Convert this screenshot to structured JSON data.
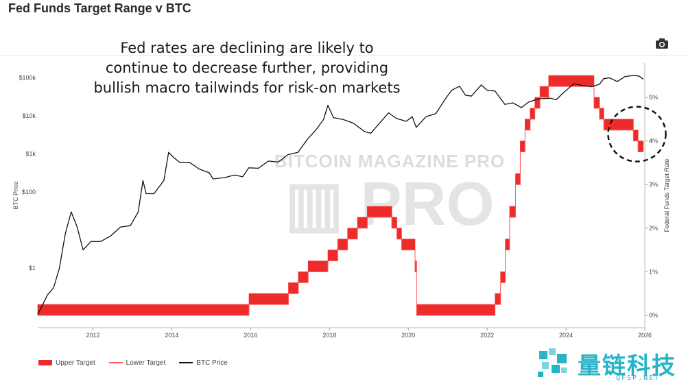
{
  "header": {
    "title": "Fed Funds Target Range v BTC"
  },
  "toolbar": {
    "camera_icon": "camera-icon"
  },
  "annotation": [
    "Fed rates are declining are likely to",
    "continue to decrease further, providing",
    "bullish macro tailwinds for risk-on markets"
  ],
  "watermark": "BITCOIN MAGAZINE PRO",
  "brand": {
    "text": "量链科技",
    "sub": "QFSP.NET",
    "color": "#28b4c8"
  },
  "colors": {
    "upper": "#ee2b2b",
    "lower": "#ff5a5a",
    "btc": "#111111"
  },
  "chart_data": {
    "type": "line",
    "title": "Fed Funds Target Range v BTC",
    "x_ticks": [
      "2012",
      "2014",
      "2016",
      "2018",
      "2020",
      "2022",
      "2024",
      "2026"
    ],
    "xlim": [
      2010.6,
      2026.0
    ],
    "y_left": {
      "label": "BTC Price",
      "scale": "log",
      "ticks": [
        {
          "value": 1,
          "label": "$1"
        },
        {
          "value": 100,
          "label": "$100"
        },
        {
          "value": 1000,
          "label": "$1k"
        },
        {
          "value": 10000,
          "label": "$10k"
        },
        {
          "value": 100000,
          "label": "$100k"
        }
      ]
    },
    "y_right": {
      "label": "Federal Funds Target Rate",
      "ticks": [
        "0%",
        "1%",
        "2%",
        "3%",
        "4%",
        "5%"
      ],
      "ylim": [
        0,
        5.5
      ]
    },
    "legend": [
      "Upper Target",
      "Lower Target",
      "BTC Price"
    ],
    "legend_position": "bottom-left",
    "series": [
      {
        "name": "Upper Target",
        "axis": "right",
        "points": [
          [
            2010.6,
            0.25
          ],
          [
            2015.96,
            0.25
          ],
          [
            2015.96,
            0.5
          ],
          [
            2016.96,
            0.5
          ],
          [
            2016.96,
            0.75
          ],
          [
            2017.21,
            0.75
          ],
          [
            2017.21,
            1.0
          ],
          [
            2017.46,
            1.0
          ],
          [
            2017.46,
            1.25
          ],
          [
            2017.96,
            1.25
          ],
          [
            2017.96,
            1.5
          ],
          [
            2018.21,
            1.5
          ],
          [
            2018.21,
            1.75
          ],
          [
            2018.46,
            1.75
          ],
          [
            2018.46,
            2.0
          ],
          [
            2018.71,
            2.0
          ],
          [
            2018.71,
            2.25
          ],
          [
            2018.96,
            2.25
          ],
          [
            2018.96,
            2.5
          ],
          [
            2019.58,
            2.5
          ],
          [
            2019.58,
            2.25
          ],
          [
            2019.71,
            2.25
          ],
          [
            2019.71,
            2.0
          ],
          [
            2019.83,
            2.0
          ],
          [
            2019.83,
            1.75
          ],
          [
            2020.17,
            1.75
          ],
          [
            2020.17,
            1.25
          ],
          [
            2020.21,
            1.25
          ],
          [
            2020.21,
            0.25
          ],
          [
            2022.2,
            0.25
          ],
          [
            2022.2,
            0.5
          ],
          [
            2022.34,
            0.5
          ],
          [
            2022.34,
            1.0
          ],
          [
            2022.46,
            1.0
          ],
          [
            2022.46,
            1.75
          ],
          [
            2022.57,
            1.75
          ],
          [
            2022.57,
            2.5
          ],
          [
            2022.72,
            2.5
          ],
          [
            2022.72,
            3.25
          ],
          [
            2022.84,
            3.25
          ],
          [
            2022.84,
            4.0
          ],
          [
            2022.96,
            4.0
          ],
          [
            2022.96,
            4.5
          ],
          [
            2023.09,
            4.5
          ],
          [
            2023.09,
            4.75
          ],
          [
            2023.21,
            4.75
          ],
          [
            2023.21,
            5.0
          ],
          [
            2023.34,
            5.0
          ],
          [
            2023.34,
            5.25
          ],
          [
            2023.56,
            5.25
          ],
          [
            2023.56,
            5.5
          ],
          [
            2024.71,
            5.5
          ],
          [
            2024.71,
            5.0
          ],
          [
            2024.85,
            5.0
          ],
          [
            2024.85,
            4.75
          ],
          [
            2024.96,
            4.75
          ],
          [
            2024.96,
            4.5
          ],
          [
            2025.71,
            4.5
          ],
          [
            2025.71,
            4.25
          ],
          [
            2025.83,
            4.25
          ],
          [
            2025.83,
            4.0
          ],
          [
            2025.96,
            4.0
          ]
        ]
      },
      {
        "name": "Lower Target",
        "axis": "right",
        "points": [
          [
            2010.6,
            0.0
          ],
          [
            2015.96,
            0.0
          ],
          [
            2015.96,
            0.25
          ],
          [
            2016.96,
            0.25
          ],
          [
            2016.96,
            0.5
          ],
          [
            2017.21,
            0.5
          ],
          [
            2017.21,
            0.75
          ],
          [
            2017.46,
            0.75
          ],
          [
            2017.46,
            1.0
          ],
          [
            2017.96,
            1.0
          ],
          [
            2017.96,
            1.25
          ],
          [
            2018.21,
            1.25
          ],
          [
            2018.21,
            1.5
          ],
          [
            2018.46,
            1.5
          ],
          [
            2018.46,
            1.75
          ],
          [
            2018.71,
            1.75
          ],
          [
            2018.71,
            2.0
          ],
          [
            2018.96,
            2.0
          ],
          [
            2018.96,
            2.25
          ],
          [
            2019.58,
            2.25
          ],
          [
            2019.58,
            2.0
          ],
          [
            2019.71,
            2.0
          ],
          [
            2019.71,
            1.75
          ],
          [
            2019.83,
            1.75
          ],
          [
            2019.83,
            1.5
          ],
          [
            2020.17,
            1.5
          ],
          [
            2020.17,
            1.0
          ],
          [
            2020.21,
            1.0
          ],
          [
            2020.21,
            0.0
          ],
          [
            2022.2,
            0.0
          ],
          [
            2022.2,
            0.25
          ],
          [
            2022.34,
            0.25
          ],
          [
            2022.34,
            0.75
          ],
          [
            2022.46,
            0.75
          ],
          [
            2022.46,
            1.5
          ],
          [
            2022.57,
            1.5
          ],
          [
            2022.57,
            2.25
          ],
          [
            2022.72,
            2.25
          ],
          [
            2022.72,
            3.0
          ],
          [
            2022.84,
            3.0
          ],
          [
            2022.84,
            3.75
          ],
          [
            2022.96,
            3.75
          ],
          [
            2022.96,
            4.25
          ],
          [
            2023.09,
            4.25
          ],
          [
            2023.09,
            4.5
          ],
          [
            2023.21,
            4.5
          ],
          [
            2023.21,
            4.75
          ],
          [
            2023.34,
            4.75
          ],
          [
            2023.34,
            5.0
          ],
          [
            2023.56,
            5.0
          ],
          [
            2023.56,
            5.25
          ],
          [
            2024.71,
            5.25
          ],
          [
            2024.71,
            4.75
          ],
          [
            2024.85,
            4.75
          ],
          [
            2024.85,
            4.5
          ],
          [
            2024.96,
            4.5
          ],
          [
            2024.96,
            4.25
          ],
          [
            2025.71,
            4.25
          ],
          [
            2025.71,
            4.0
          ],
          [
            2025.83,
            4.0
          ],
          [
            2025.83,
            3.75
          ],
          [
            2025.96,
            3.75
          ]
        ]
      },
      {
        "name": "BTC Price",
        "axis": "left",
        "points": [
          [
            2010.6,
            0.06
          ],
          [
            2010.85,
            0.2
          ],
          [
            2011.0,
            0.3
          ],
          [
            2011.15,
            1.0
          ],
          [
            2011.3,
            8
          ],
          [
            2011.45,
            30
          ],
          [
            2011.6,
            12
          ],
          [
            2011.75,
            3
          ],
          [
            2011.95,
            5
          ],
          [
            2012.2,
            5
          ],
          [
            2012.45,
            7
          ],
          [
            2012.7,
            12
          ],
          [
            2012.95,
            13
          ],
          [
            2013.15,
            30
          ],
          [
            2013.27,
            200
          ],
          [
            2013.35,
            90
          ],
          [
            2013.55,
            90
          ],
          [
            2013.8,
            200
          ],
          [
            2013.92,
            1100
          ],
          [
            2014.05,
            800
          ],
          [
            2014.2,
            600
          ],
          [
            2014.45,
            600
          ],
          [
            2014.7,
            400
          ],
          [
            2014.95,
            320
          ],
          [
            2015.05,
            220
          ],
          [
            2015.35,
            240
          ],
          [
            2015.6,
            280
          ],
          [
            2015.8,
            250
          ],
          [
            2015.95,
            430
          ],
          [
            2016.2,
            420
          ],
          [
            2016.45,
            650
          ],
          [
            2016.7,
            610
          ],
          [
            2016.95,
            960
          ],
          [
            2017.2,
            1100
          ],
          [
            2017.45,
            2500
          ],
          [
            2017.65,
            4200
          ],
          [
            2017.85,
            8000
          ],
          [
            2017.96,
            19000
          ],
          [
            2018.1,
            9000
          ],
          [
            2018.35,
            8000
          ],
          [
            2018.6,
            6500
          ],
          [
            2018.9,
            3800
          ],
          [
            2019.05,
            3500
          ],
          [
            2019.35,
            8000
          ],
          [
            2019.5,
            12000
          ],
          [
            2019.7,
            8500
          ],
          [
            2019.95,
            7200
          ],
          [
            2020.1,
            9500
          ],
          [
            2020.2,
            5000
          ],
          [
            2020.45,
            9500
          ],
          [
            2020.7,
            11500
          ],
          [
            2020.95,
            29000
          ],
          [
            2021.1,
            47000
          ],
          [
            2021.3,
            60000
          ],
          [
            2021.45,
            35000
          ],
          [
            2021.6,
            33000
          ],
          [
            2021.85,
            65000
          ],
          [
            2022.0,
            47000
          ],
          [
            2022.2,
            45000
          ],
          [
            2022.45,
            20000
          ],
          [
            2022.65,
            22000
          ],
          [
            2022.87,
            16500
          ],
          [
            2023.05,
            23000
          ],
          [
            2023.3,
            28000
          ],
          [
            2023.6,
            29000
          ],
          [
            2023.75,
            26500
          ],
          [
            2023.95,
            42000
          ],
          [
            2024.2,
            70000
          ],
          [
            2024.45,
            62000
          ],
          [
            2024.65,
            58000
          ],
          [
            2024.85,
            68000
          ],
          [
            2024.96,
            95000
          ],
          [
            2025.1,
            100000
          ],
          [
            2025.3,
            80000
          ],
          [
            2025.5,
            108000
          ],
          [
            2025.7,
            115000
          ],
          [
            2025.85,
            112000
          ],
          [
            2025.96,
            92000
          ]
        ]
      }
    ],
    "annotations": [
      {
        "type": "dashed-circle",
        "x": 2025.8,
        "y_right": 4.0
      }
    ]
  }
}
